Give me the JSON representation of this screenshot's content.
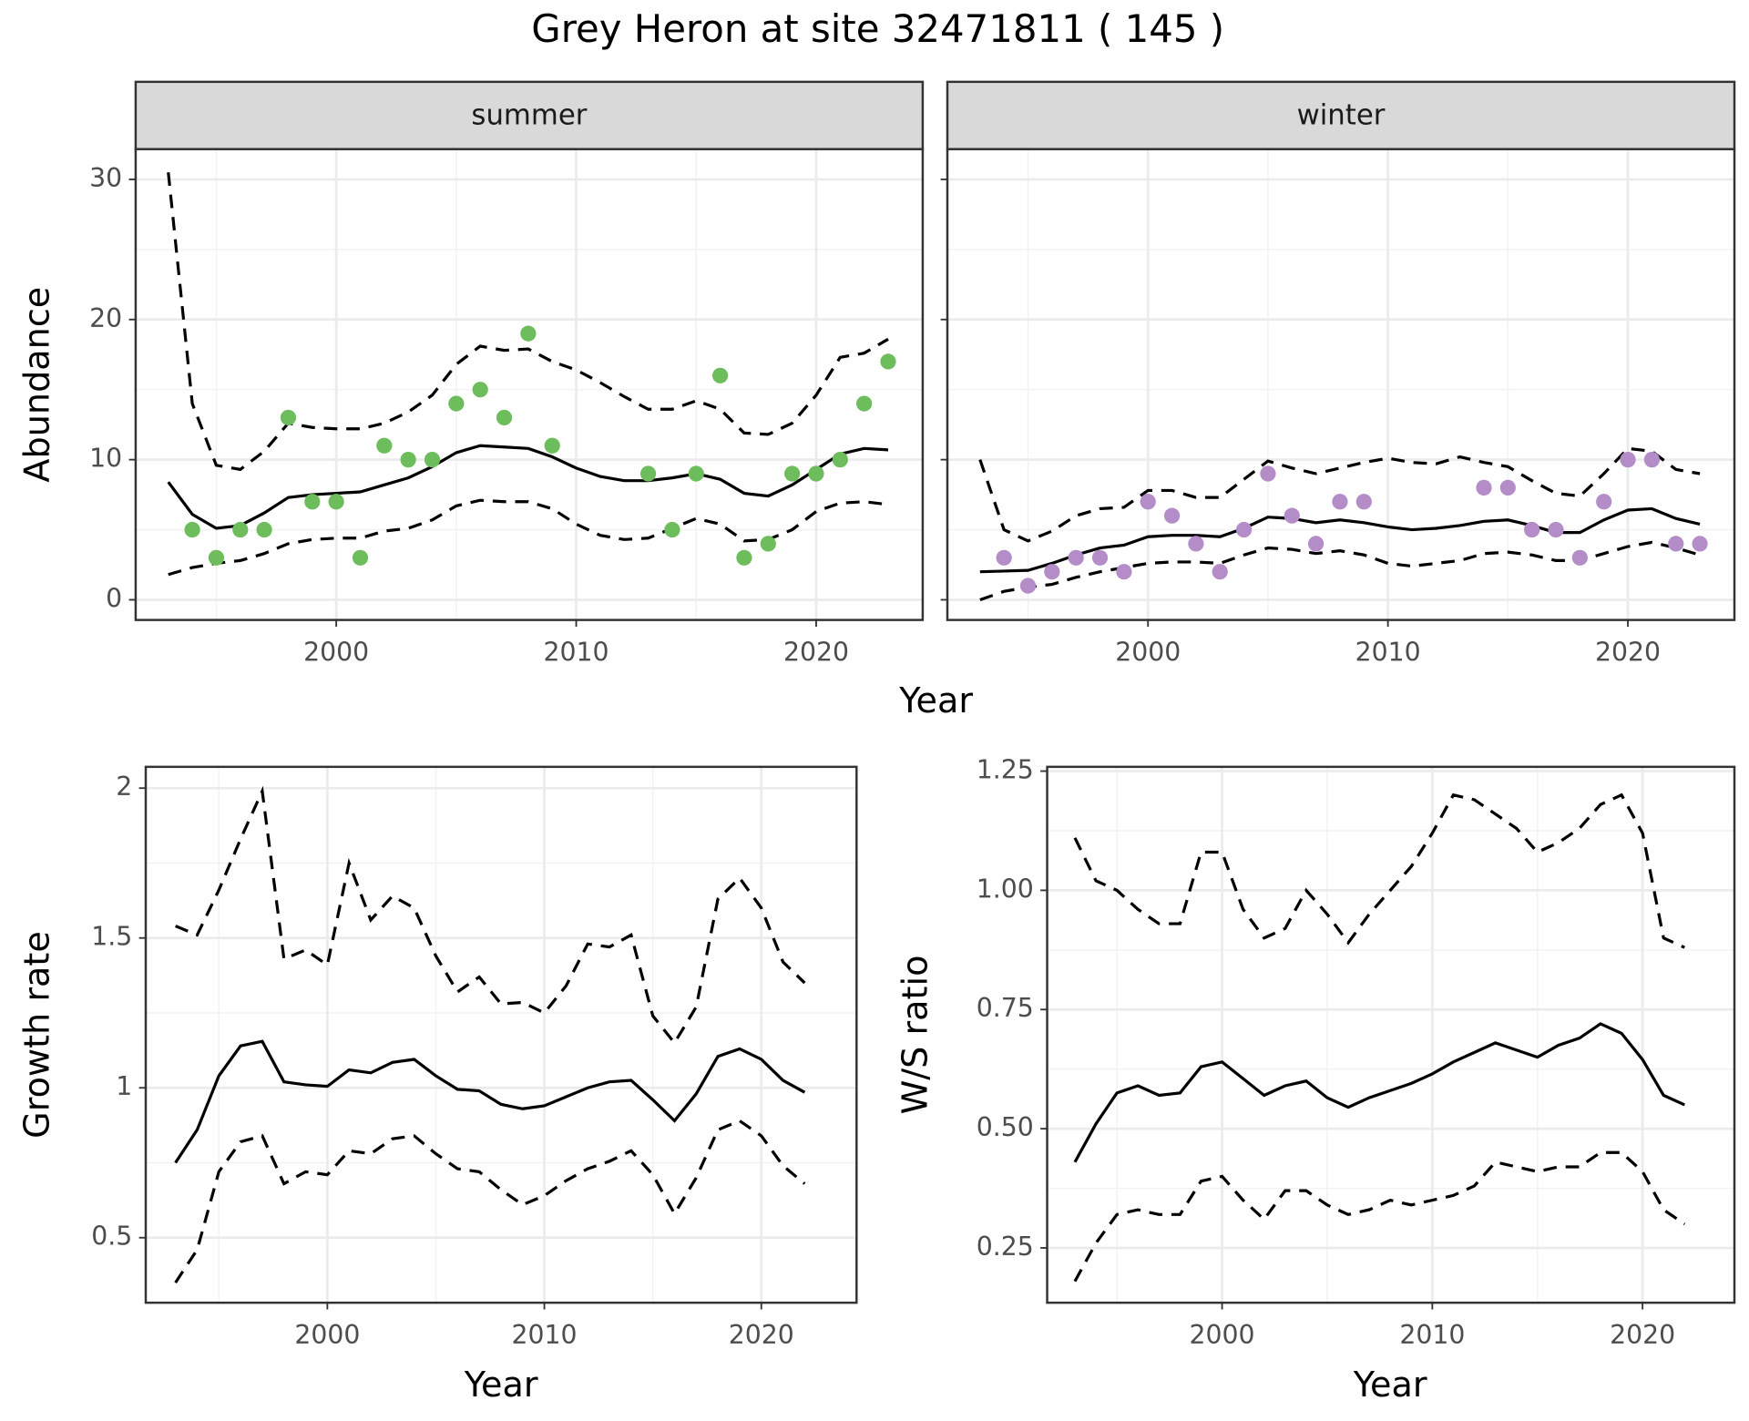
{
  "title": "Grey Heron at site 32471811 ( 145 )",
  "chart_data": [
    {
      "type": "line",
      "strip": "summer",
      "x_label": "Year",
      "y_label": "Abundance",
      "x": [
        1993,
        1994,
        1995,
        1996,
        1997,
        1998,
        1999,
        2000,
        2001,
        2002,
        2003,
        2004,
        2005,
        2006,
        2007,
        2008,
        2009,
        2010,
        2011,
        2012,
        2013,
        2014,
        2015,
        2016,
        2017,
        2018,
        2019,
        2020,
        2021,
        2022,
        2023
      ],
      "series": [
        {
          "color": "#000000",
          "dashed": false,
          "values": [
            8.4,
            6.1,
            5.1,
            5.3,
            6.2,
            7.3,
            7.5,
            7.6,
            7.7,
            8.2,
            8.7,
            9.5,
            10.5,
            11.0,
            10.9,
            10.8,
            10.2,
            9.4,
            8.8,
            8.5,
            8.5,
            8.7,
            9.0,
            8.6,
            7.6,
            7.4,
            8.2,
            9.3,
            10.4,
            10.8,
            10.7
          ]
        },
        {
          "color": "#000000",
          "dashed": true,
          "values": [
            30.5,
            14,
            9.6,
            9.3,
            10.6,
            12.6,
            12.3,
            12.2,
            12.2,
            12.6,
            13.4,
            14.6,
            16.8,
            18.1,
            17.8,
            17.9,
            17.0,
            16.4,
            15.5,
            14.5,
            13.6,
            13.6,
            14.2,
            13.6,
            11.9,
            11.8,
            12.6,
            14.6,
            17.3,
            17.6,
            18.6
          ]
        },
        {
          "color": "#000000",
          "dashed": true,
          "values": [
            1.8,
            2.3,
            2.6,
            2.8,
            3.3,
            4.0,
            4.3,
            4.4,
            4.4,
            4.9,
            5.1,
            5.7,
            6.7,
            7.1,
            7.0,
            7.0,
            6.5,
            5.4,
            4.6,
            4.3,
            4.4,
            5.1,
            5.8,
            5.4,
            4.2,
            4.3,
            5.0,
            6.3,
            6.9,
            7.0,
            6.8
          ]
        }
      ],
      "points": {
        "color": "#6dbd5c",
        "x": [
          1994,
          1995,
          1996,
          1997,
          1998,
          1999,
          2000,
          2001,
          2002,
          2003,
          2004,
          2005,
          2006,
          2007,
          2008,
          2009,
          2013,
          2014,
          2015,
          2016,
          2017,
          2018,
          2019,
          2020,
          2021,
          2022,
          2023
        ],
        "values": [
          5,
          3,
          5,
          5,
          13,
          7,
          7,
          3,
          11,
          10,
          10,
          14,
          15,
          13,
          19,
          11,
          9,
          5,
          9,
          16,
          3,
          4,
          9,
          9,
          10,
          14,
          17
        ]
      },
      "xlim": [
        1991.64,
        2024.44
      ],
      "ylim": [
        -1.44,
        32.16
      ],
      "xticks": [
        2000,
        2010,
        2020
      ],
      "yticks": [
        0,
        10,
        20,
        30
      ],
      "xminor": [
        1995,
        2005,
        2015
      ],
      "yminor": [
        5,
        15,
        25
      ],
      "show_ytick_labels": true,
      "grid": true
    },
    {
      "type": "line",
      "strip": "winter",
      "x": [
        1993,
        1994,
        1995,
        1996,
        1997,
        1998,
        1999,
        2000,
        2001,
        2002,
        2003,
        2004,
        2005,
        2006,
        2007,
        2008,
        2009,
        2010,
        2011,
        2012,
        2013,
        2014,
        2015,
        2016,
        2017,
        2018,
        2019,
        2020,
        2021,
        2022,
        2023
      ],
      "series": [
        {
          "color": "#000000",
          "dashed": false,
          "values": [
            2.0,
            2.05,
            2.1,
            2.6,
            3.2,
            3.7,
            3.9,
            4.5,
            4.6,
            4.6,
            4.5,
            5.1,
            5.9,
            5.8,
            5.5,
            5.7,
            5.5,
            5.2,
            5.0,
            5.1,
            5.3,
            5.6,
            5.7,
            5.3,
            4.8,
            4.8,
            5.7,
            6.4,
            6.5,
            5.8,
            5.4
          ]
        },
        {
          "color": "#000000",
          "dashed": true,
          "values": [
            10,
            5,
            4.2,
            4.9,
            6.0,
            6.5,
            6.6,
            7.8,
            7.8,
            7.3,
            7.3,
            8.6,
            9.9,
            9.4,
            9.0,
            9.4,
            9.8,
            10.1,
            9.8,
            9.7,
            10.2,
            9.8,
            9.5,
            8.5,
            7.6,
            7.4,
            9.0,
            10.8,
            10.6,
            9.3,
            9.0
          ]
        },
        {
          "color": "#000000",
          "dashed": true,
          "values": [
            0,
            0.6,
            0.9,
            1.1,
            1.6,
            2.0,
            2.3,
            2.6,
            2.7,
            2.7,
            2.6,
            3.2,
            3.7,
            3.6,
            3.3,
            3.5,
            3.2,
            2.6,
            2.4,
            2.6,
            2.8,
            3.3,
            3.4,
            3.2,
            2.8,
            2.8,
            3.3,
            3.8,
            4.1,
            3.7,
            3.2
          ]
        }
      ],
      "points": {
        "color": "#b48cc8",
        "x": [
          1994,
          1995,
          1996,
          1997,
          1998,
          1999,
          2000,
          2001,
          2002,
          2003,
          2004,
          2005,
          2006,
          2007,
          2008,
          2009,
          2014,
          2015,
          2016,
          2017,
          2018,
          2019,
          2020,
          2021,
          2022,
          2023
        ],
        "values": [
          3,
          1,
          2,
          3,
          3,
          2,
          7,
          6,
          4,
          2,
          5,
          9,
          6,
          4,
          7,
          7,
          8,
          8,
          5,
          5,
          3,
          7,
          10,
          10,
          4,
          4
        ]
      },
      "xlim": [
        1991.64,
        2024.44
      ],
      "ylim": [
        -1.44,
        32.16
      ],
      "xticks": [
        2000,
        2010,
        2020
      ],
      "yticks": [
        0,
        10,
        20,
        30
      ],
      "xminor": [
        1995,
        2005,
        2015
      ],
      "yminor": [
        5,
        15,
        25
      ],
      "show_ytick_labels": false,
      "grid": true
    },
    {
      "type": "line",
      "x_label": "Year",
      "y_label": "Growth rate",
      "x": [
        1993,
        1994,
        1995,
        1996,
        1997,
        1998,
        1999,
        2000,
        2001,
        2002,
        2003,
        2004,
        2005,
        2006,
        2007,
        2008,
        2009,
        2010,
        2011,
        2012,
        2013,
        2014,
        2015,
        2016,
        2017,
        2018,
        2019,
        2020,
        2021,
        2022
      ],
      "series": [
        {
          "color": "#000000",
          "dashed": false,
          "values": [
            0.75,
            0.86,
            1.04,
            1.14,
            1.155,
            1.02,
            1.01,
            1.005,
            1.06,
            1.05,
            1.085,
            1.095,
            1.04,
            0.995,
            0.99,
            0.945,
            0.93,
            0.94,
            0.97,
            1.0,
            1.02,
            1.025,
            0.96,
            0.89,
            0.98,
            1.105,
            1.13,
            1.095,
            1.025,
            0.985
          ]
        },
        {
          "color": "#000000",
          "dashed": true,
          "values": [
            1.54,
            1.51,
            1.66,
            1.83,
            1.99,
            1.43,
            1.46,
            1.41,
            1.75,
            1.56,
            1.64,
            1.6,
            1.44,
            1.32,
            1.37,
            1.28,
            1.285,
            1.25,
            1.34,
            1.48,
            1.47,
            1.51,
            1.24,
            1.15,
            1.27,
            1.63,
            1.7,
            1.6,
            1.42,
            1.35
          ]
        },
        {
          "color": "#000000",
          "dashed": true,
          "values": [
            0.35,
            0.46,
            0.72,
            0.82,
            0.84,
            0.68,
            0.72,
            0.71,
            0.79,
            0.78,
            0.83,
            0.84,
            0.78,
            0.73,
            0.72,
            0.66,
            0.61,
            0.64,
            0.69,
            0.73,
            0.755,
            0.79,
            0.71,
            0.58,
            0.7,
            0.86,
            0.89,
            0.84,
            0.74,
            0.68
          ]
        }
      ],
      "xlim": [
        1991.63,
        2024.39
      ],
      "ylim": [
        0.283,
        2.071
      ],
      "xticks": [
        2000,
        2010,
        2020
      ],
      "yticks": [
        0.5,
        1.0,
        1.5,
        2.0
      ],
      "xminor": [
        1995,
        2005,
        2015
      ],
      "yminor": [
        0.75,
        1.25,
        1.75
      ],
      "show_ytick_labels": true,
      "grid": true
    },
    {
      "type": "line",
      "x_label": "Year",
      "y_label": "W/S ratio",
      "x": [
        1993,
        1994,
        1995,
        1996,
        1997,
        1998,
        1999,
        2000,
        2001,
        2002,
        2003,
        2004,
        2005,
        2006,
        2007,
        2008,
        2009,
        2010,
        2011,
        2012,
        2013,
        2014,
        2015,
        2016,
        2017,
        2018,
        2019,
        2020,
        2021,
        2022
      ],
      "series": [
        {
          "color": "#000000",
          "dashed": false,
          "values": [
            0.43,
            0.51,
            0.575,
            0.59,
            0.57,
            0.575,
            0.63,
            0.64,
            0.605,
            0.57,
            0.59,
            0.6,
            0.565,
            0.545,
            0.565,
            0.58,
            0.595,
            0.615,
            0.64,
            0.66,
            0.68,
            0.665,
            0.65,
            0.675,
            0.69,
            0.72,
            0.7,
            0.645,
            0.57,
            0.55
          ]
        },
        {
          "color": "#000000",
          "dashed": true,
          "values": [
            1.11,
            1.02,
            1.0,
            0.96,
            0.93,
            0.93,
            1.08,
            1.08,
            0.96,
            0.9,
            0.92,
            1.0,
            0.95,
            0.89,
            0.95,
            1.0,
            1.05,
            1.12,
            1.2,
            1.19,
            1.16,
            1.13,
            1.08,
            1.1,
            1.13,
            1.18,
            1.2,
            1.12,
            0.9,
            0.88
          ]
        },
        {
          "color": "#000000",
          "dashed": true,
          "values": [
            0.18,
            0.26,
            0.32,
            0.33,
            0.32,
            0.32,
            0.39,
            0.4,
            0.35,
            0.31,
            0.37,
            0.37,
            0.34,
            0.32,
            0.33,
            0.35,
            0.34,
            0.35,
            0.36,
            0.38,
            0.43,
            0.42,
            0.41,
            0.42,
            0.42,
            0.45,
            0.45,
            0.41,
            0.33,
            0.3
          ]
        }
      ],
      "xlim": [
        1991.68,
        2024.37
      ],
      "ylim": [
        0.135,
        1.259
      ],
      "xticks": [
        2000,
        2010,
        2020
      ],
      "yticks": [
        {
          "value": 0.25,
          "label": "0.25"
        },
        {
          "value": 0.5,
          "label": "0.50"
        },
        {
          "value": 0.75,
          "label": "0.75"
        },
        {
          "value": 1.0,
          "label": "1.00"
        },
        {
          "value": 1.25,
          "label": "1.25"
        }
      ],
      "xminor": [
        1995,
        2005,
        2015
      ],
      "yminor": [
        0.375,
        0.625,
        0.875,
        1.125
      ],
      "show_ytick_labels": true,
      "grid": true
    }
  ]
}
